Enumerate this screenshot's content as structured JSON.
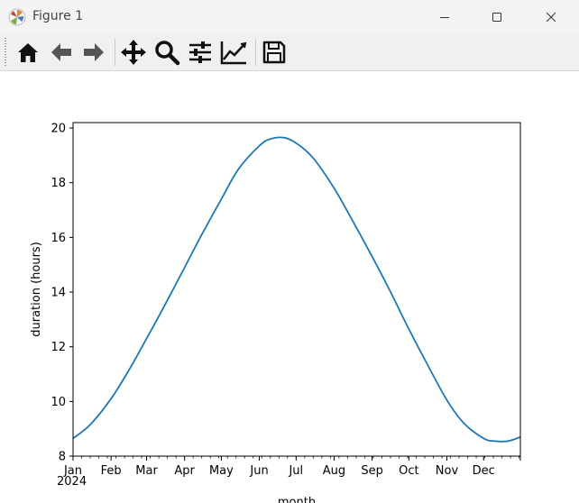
{
  "window": {
    "title": "Figure 1",
    "minimize_icon": "minimize-icon",
    "maximize_icon": "maximize-icon",
    "close_icon": "close-icon"
  },
  "toolbar": {
    "buttons": [
      {
        "name": "home",
        "icon": "home-icon"
      },
      {
        "name": "back",
        "icon": "arrow-left-icon"
      },
      {
        "name": "forward",
        "icon": "arrow-right-icon"
      },
      {
        "name": "pan",
        "icon": "move-icon"
      },
      {
        "name": "zoom",
        "icon": "magnifier-icon"
      },
      {
        "name": "configure-subplots",
        "icon": "sliders-icon"
      },
      {
        "name": "edit-axes",
        "icon": "line-chart-icon"
      },
      {
        "name": "save",
        "icon": "floppy-disk-icon"
      }
    ]
  },
  "chart_data": {
    "type": "line",
    "title": "",
    "xlabel": "month",
    "ylabel": "duration (hours)",
    "x_tick_labels": [
      "Jan",
      "Feb",
      "Mar",
      "Apr",
      "May",
      "Jun",
      "Jul",
      "Aug",
      "Sep",
      "Oct",
      "Nov",
      "Dec"
    ],
    "x_year_label": "2024",
    "y_tick_labels": [
      "8",
      "10",
      "12",
      "14",
      "16",
      "18",
      "20"
    ],
    "xlim": [
      "2024-01-01",
      "2024-12-31"
    ],
    "ylim": [
      8,
      20.2
    ],
    "grid": false,
    "line_color": "#1f77b4",
    "series": [
      {
        "x": [
          "2024-01-01",
          "2024-01-15",
          "2024-02-01",
          "2024-02-15",
          "2024-03-01",
          "2024-03-15",
          "2024-04-01",
          "2024-04-15",
          "2024-05-01",
          "2024-05-15",
          "2024-06-01",
          "2024-06-10",
          "2024-06-21",
          "2024-07-01",
          "2024-07-15",
          "2024-08-01",
          "2024-08-15",
          "2024-09-01",
          "2024-09-15",
          "2024-10-01",
          "2024-10-15",
          "2024-11-01",
          "2024-11-15",
          "2024-12-01",
          "2024-12-10",
          "2024-12-21",
          "2024-12-31"
        ],
        "y": [
          8.65,
          9.15,
          10.1,
          11.1,
          12.3,
          13.45,
          14.9,
          16.1,
          17.4,
          18.5,
          19.35,
          19.6,
          19.65,
          19.45,
          18.9,
          17.8,
          16.7,
          15.3,
          14.1,
          12.65,
          11.45,
          10.05,
          9.2,
          8.65,
          8.55,
          8.55,
          8.7
        ]
      }
    ]
  }
}
